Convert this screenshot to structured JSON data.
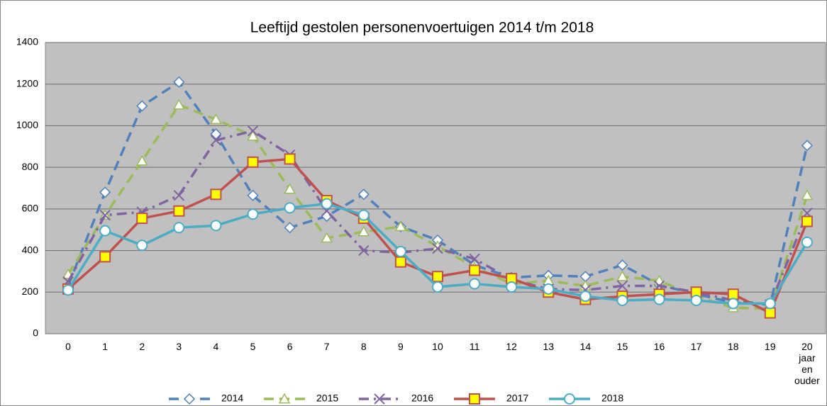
{
  "chart_data": {
    "type": "line",
    "title": "Leeftijd gestolen personenvoertuigen 2014 t/m 2018",
    "categories": [
      "0",
      "1",
      "2",
      "3",
      "4",
      "5",
      "6",
      "7",
      "8",
      "9",
      "10",
      "11",
      "12",
      "13",
      "14",
      "15",
      "16",
      "17",
      "18",
      "19",
      "20 jaar en ouder"
    ],
    "ylim": [
      0,
      1400
    ],
    "yticks": [
      0,
      200,
      400,
      600,
      800,
      1000,
      1200,
      1400
    ],
    "grid": true,
    "legend": "bottom",
    "series": [
      {
        "name": "2014",
        "color": "#4f81bd",
        "dash": "dash",
        "marker": "diamond",
        "values": [
          230,
          680,
          1095,
          1210,
          960,
          665,
          510,
          565,
          670,
          515,
          450,
          330,
          270,
          280,
          275,
          330,
          235,
          190,
          150,
          140,
          905
        ]
      },
      {
        "name": "2015",
        "color": "#9bbb59",
        "dash": "dash",
        "marker": "triangle",
        "values": [
          285,
          570,
          830,
          1100,
          1030,
          950,
          695,
          460,
          490,
          515,
          420,
          320,
          240,
          255,
          230,
          275,
          255,
          180,
          125,
          120,
          665
        ]
      },
      {
        "name": "2016",
        "color": "#8064a2",
        "dash": "dashdot",
        "marker": "x",
        "values": [
          250,
          570,
          585,
          665,
          930,
          975,
          860,
          590,
          400,
          390,
          410,
          360,
          260,
          215,
          210,
          230,
          230,
          200,
          160,
          140,
          580
        ]
      },
      {
        "name": "2017",
        "color": "#c0504d",
        "dash": "solid",
        "marker": "square",
        "values": [
          215,
          370,
          555,
          590,
          670,
          825,
          840,
          640,
          555,
          345,
          275,
          305,
          265,
          200,
          165,
          180,
          190,
          200,
          190,
          100,
          540
        ]
      },
      {
        "name": "2018",
        "color": "#4bacc6",
        "dash": "solid",
        "marker": "circle",
        "values": [
          210,
          495,
          425,
          510,
          520,
          575,
          605,
          625,
          570,
          395,
          225,
          240,
          225,
          215,
          180,
          160,
          165,
          160,
          145,
          145,
          440
        ]
      }
    ]
  }
}
